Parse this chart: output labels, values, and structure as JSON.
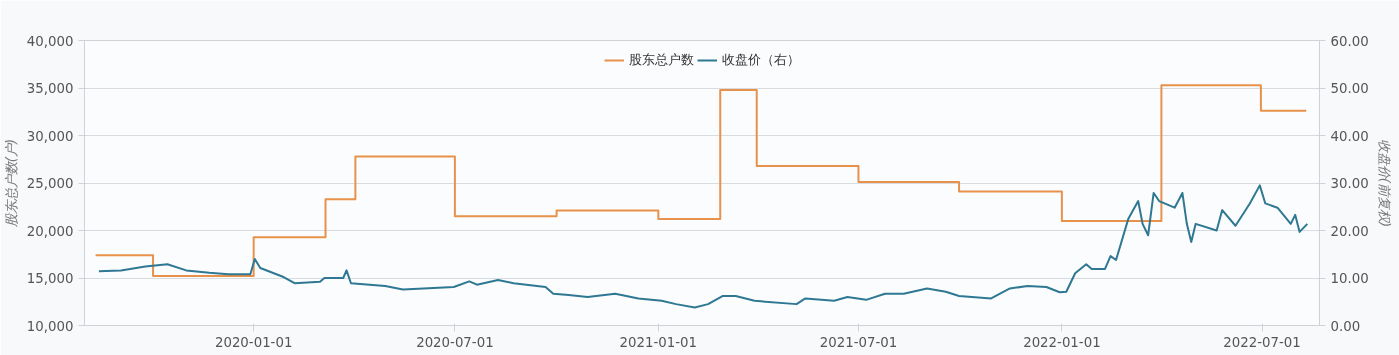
{
  "chart_data": {
    "type": "line",
    "ylabel": "股东总户数(户)",
    "y2label": "收盘价(前复权)",
    "legend": "top",
    "grid": "y",
    "xlim": [
      "2019-08-01",
      "2022-08-22"
    ],
    "xticks": [
      "2020-01-01",
      "2020-07-01",
      "2021-01-01",
      "2021-07-01",
      "2022-01-01",
      "2022-07-01"
    ],
    "ylim": [
      10000,
      40000
    ],
    "yticks": [
      {
        "value": 10000,
        "label": "10,000"
      },
      {
        "value": 15000,
        "label": "15,000"
      },
      {
        "value": 20000,
        "label": "20,000"
      },
      {
        "value": 25000,
        "label": "25,000"
      },
      {
        "value": 30000,
        "label": "30,000"
      },
      {
        "value": 35000,
        "label": "35,000"
      },
      {
        "value": 40000,
        "label": "40,000"
      }
    ],
    "y2lim": [
      0,
      60
    ],
    "y2ticks": [
      {
        "value": 0,
        "label": "0.00"
      },
      {
        "value": 10,
        "label": "10.00"
      },
      {
        "value": 20,
        "label": "20.00"
      },
      {
        "value": 30,
        "label": "30.00"
      },
      {
        "value": 40,
        "label": "40.00"
      },
      {
        "value": 50,
        "label": "50.00"
      },
      {
        "value": 60,
        "label": "60.00"
      }
    ],
    "series": [
      {
        "name": "股东总户数",
        "type": "step",
        "color": "#e8914a",
        "x": [
          "2019-08-11",
          "2019-10-02",
          "2020-01-01",
          "2020-03-06",
          "2020-04-02",
          "2020-07-01",
          "2020-10-01",
          "2021-01-01",
          "2021-02-26",
          "2021-03-31",
          "2021-07-01",
          "2021-09-30",
          "2022-01-01",
          "2022-04-01",
          "2022-06-30",
          "2022-08-10"
        ],
        "values": [
          17400,
          15200,
          19300,
          23300,
          27800,
          21500,
          22100,
          21200,
          34800,
          26800,
          25100,
          24100,
          21000,
          35300,
          32600,
          32600
        ]
      },
      {
        "name": "收盘价（右）",
        "axis": "y2",
        "color": "#2f7893",
        "x": [
          "2019-08-14",
          "2019-09-03",
          "2019-09-25",
          "2019-10-15",
          "2019-11-01",
          "2019-11-22",
          "2019-12-09",
          "2019-12-29",
          "2020-01-02",
          "2020-01-07",
          "2020-01-28",
          "2020-02-07",
          "2020-03-01",
          "2020-03-05",
          "2020-03-22",
          "2020-03-25",
          "2020-03-29",
          "2020-04-29",
          "2020-05-15",
          "2020-06-30",
          "2020-07-14",
          "2020-07-21",
          "2020-08-09",
          "2020-08-23",
          "2020-09-21",
          "2020-09-28",
          "2020-10-12",
          "2020-10-29",
          "2020-11-23",
          "2020-12-14",
          "2021-01-04",
          "2021-01-17",
          "2021-02-03",
          "2021-02-15",
          "2021-02-28",
          "2021-03-12",
          "2021-03-29",
          "2021-05-06",
          "2021-05-14",
          "2021-06-09",
          "2021-06-21",
          "2021-07-08",
          "2021-07-25",
          "2021-08-11",
          "2021-09-01",
          "2021-09-18",
          "2021-09-30",
          "2021-10-29",
          "2021-11-15",
          "2021-12-01",
          "2021-12-18",
          "2021-12-30",
          "2022-01-05",
          "2022-01-13",
          "2022-01-23",
          "2022-01-28",
          "2022-02-09",
          "2022-02-14",
          "2022-02-19",
          "2022-03-02",
          "2022-03-11",
          "2022-03-15",
          "2022-03-20",
          "2022-03-25",
          "2022-03-30",
          "2022-04-13",
          "2022-04-20",
          "2022-04-24",
          "2022-04-28",
          "2022-05-02",
          "2022-05-21",
          "2022-05-26",
          "2022-06-07",
          "2022-06-20",
          "2022-06-29",
          "2022-07-04",
          "2022-07-15",
          "2022-07-27",
          "2022-07-31",
          "2022-08-04",
          "2022-08-11"
        ],
        "values": [
          11.4,
          11.6,
          12.4,
          12.9,
          11.6,
          11.1,
          10.8,
          10.8,
          14.0,
          12.1,
          10.2,
          8.9,
          9.2,
          10.0,
          10.0,
          11.6,
          8.9,
          8.3,
          7.6,
          8.1,
          9.3,
          8.6,
          9.6,
          8.9,
          8.1,
          6.7,
          6.4,
          6.0,
          6.7,
          5.7,
          5.2,
          4.5,
          3.8,
          4.5,
          6.2,
          6.2,
          5.2,
          4.5,
          5.7,
          5.2,
          6.0,
          5.4,
          6.7,
          6.7,
          7.8,
          7.1,
          6.2,
          5.7,
          7.8,
          8.3,
          8.1,
          7.0,
          7.1,
          11.0,
          12.9,
          11.9,
          11.9,
          14.6,
          13.8,
          22.4,
          26.2,
          21.4,
          19.0,
          27.9,
          26.2,
          24.8,
          27.9,
          21.4,
          17.6,
          21.4,
          20.0,
          24.3,
          21.0,
          25.7,
          29.5,
          25.7,
          24.8,
          21.4,
          23.3,
          19.7,
          21.4
        ]
      }
    ]
  }
}
